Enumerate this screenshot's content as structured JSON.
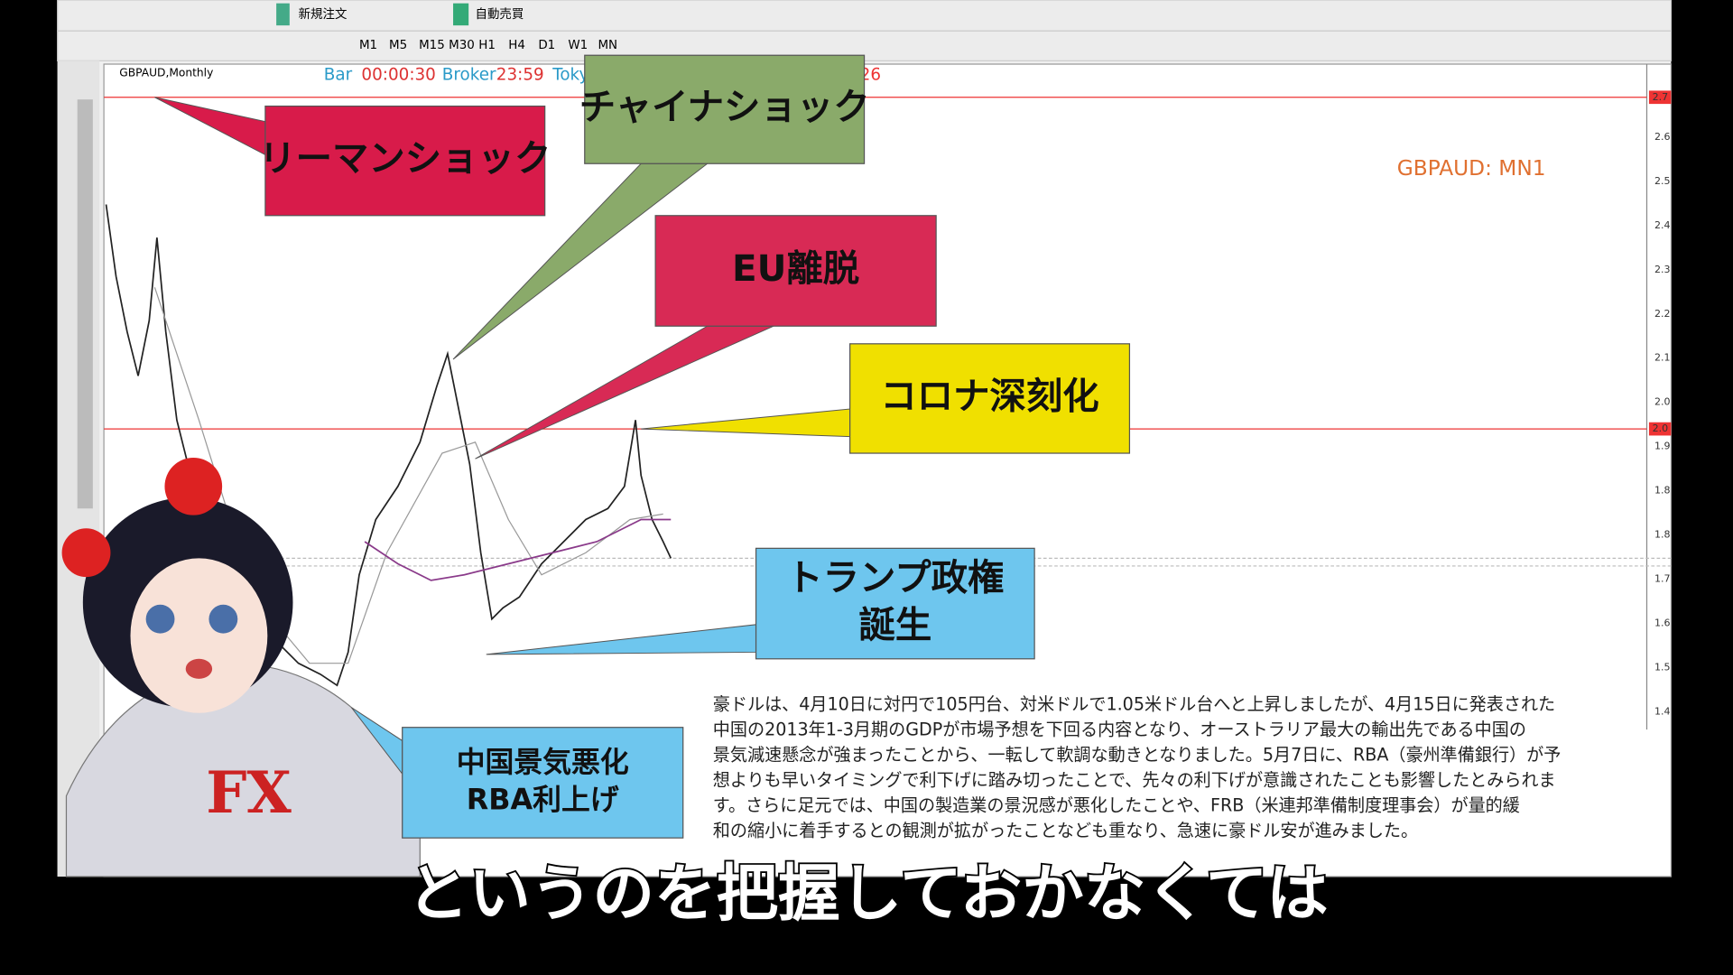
{
  "toolbar": {
    "new_order": "新規注文",
    "auto_trade": "自動売買",
    "timeframes": [
      "M1",
      "M5",
      "M15",
      "M30",
      "H1",
      "H4",
      "D1",
      "W1",
      "MN"
    ]
  },
  "chart": {
    "symbol": "GBPAUD,Monthly",
    "info": [
      "Bar",
      "00:00:30",
      "Broker",
      "23:59",
      "Toky"
    ],
    "info_tail": "26",
    "label": "GBPAUD: MN1",
    "price_labels": [
      "2.6",
      "2.5",
      "2.4",
      "2.3",
      "2.2",
      "2.1",
      "2.0",
      "1.9",
      "1.8",
      "1.8",
      "1.7",
      "1.6",
      "1.5",
      "1.4"
    ],
    "price_markers": [
      "2.7",
      "2.0"
    ]
  },
  "annotations": [
    {
      "lines": [
        "リーマンショック"
      ]
    },
    {
      "lines": [
        "チャイナショック"
      ]
    },
    {
      "lines": [
        "EU離脱"
      ]
    },
    {
      "lines": [
        "コロナ深刻化"
      ]
    },
    {
      "lines": [
        "トランプ政権",
        "誕生"
      ]
    },
    {
      "lines": [
        "中国景気悪化",
        "RBA利上げ"
      ]
    }
  ],
  "note": {
    "lines": [
      "豪ドルは、4月10日に対円で105円台、対米ドルで1.05米ドル台へと上昇しましたが、4月15日に発表された",
      "中国の2013年1-3月期のGDPが市場予想を下回る内容となり、オーストラリア最大の輸出先である中国の",
      "景気減速懸念が強まったことから、一転して軟調な動きとなりました。5月7日に、RBA（豪州準備銀行）が予",
      "想よりも早いタイミングで利下げに踏み切ったことで、先々の利下げが意識されたことも影響したとみられま",
      "す。さらに足元では、中国の製造業の景況感が悪化したことや、FRB（米連邦準備制度理事会）が量的緩",
      "和の縮小に着手するとの観測が拡がったことなども重なり、急速に豪ドル安が進みました。"
    ]
  },
  "subtitle": "というのを把握しておかなくては"
}
